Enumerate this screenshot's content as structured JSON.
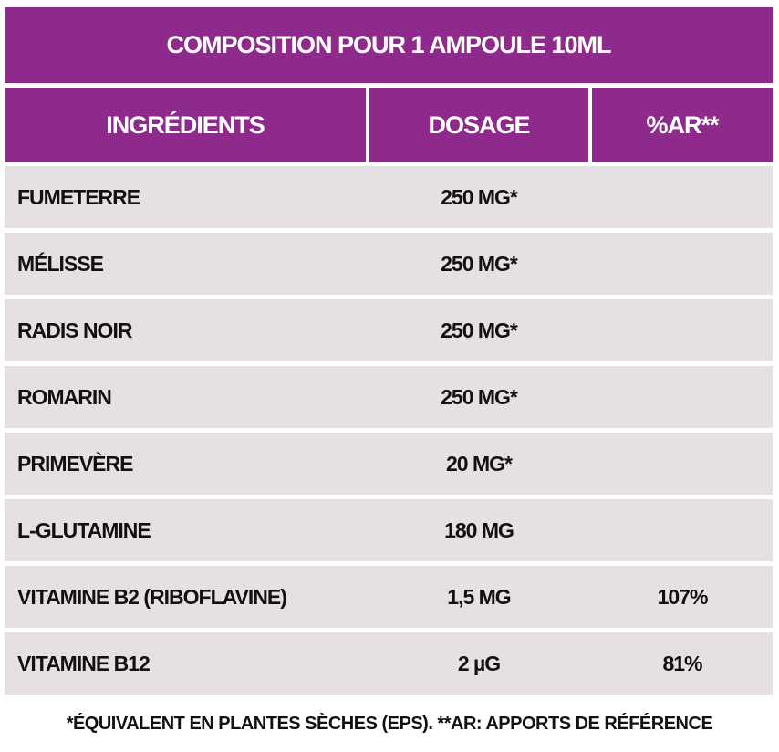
{
  "title": "COMPOSITION POUR 1 AMPOULE 10ML",
  "columns": [
    "INGRÉDIENTS",
    "DOSAGE",
    "%AR**"
  ],
  "rows": [
    {
      "ingredient": "FUMETERRE",
      "dosage": "250 MG*",
      "ar": ""
    },
    {
      "ingredient": "MÉLISSE",
      "dosage": "250 MG*",
      "ar": ""
    },
    {
      "ingredient": "RADIS NOIR",
      "dosage": "250 MG*",
      "ar": ""
    },
    {
      "ingredient": "ROMARIN",
      "dosage": "250 MG*",
      "ar": ""
    },
    {
      "ingredient": "PRIMEVÈRE",
      "dosage": "20 MG*",
      "ar": ""
    },
    {
      "ingredient": "L-GLUTAMINE",
      "dosage": "180 MG",
      "ar": ""
    },
    {
      "ingredient": "VITAMINE B2 (RIBOFLAVINE)",
      "dosage": "1,5 MG",
      "ar": "107%"
    },
    {
      "ingredient": "VITAMINE B12",
      "dosage": "2 µG",
      "ar": "81%"
    }
  ],
  "footnote": "*ÉQUIVALENT EN PLANTES SÈCHES (EPS). **AR: APPORTS DE RÉFÉRENCE",
  "colors": {
    "header": "#8e2a8b",
    "row": "#e6e0e4",
    "text": "#111111"
  }
}
